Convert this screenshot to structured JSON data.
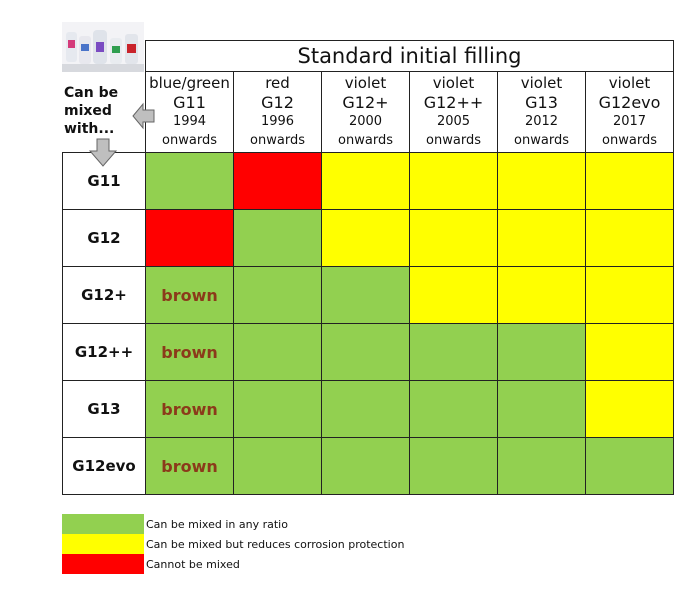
{
  "table": {
    "title": "Standard initial filling",
    "corner_label": "Can be mixed with...",
    "columns": [
      {
        "color": "blue/green",
        "code": "G11",
        "year": "1994",
        "suffix": "onwards"
      },
      {
        "color": "red",
        "code": "G12",
        "year": "1996",
        "suffix": "onwards"
      },
      {
        "color": "violet",
        "code": "G12+",
        "year": "2000",
        "suffix": "onwards"
      },
      {
        "color": "violet",
        "code": "G12++",
        "year": "2005",
        "suffix": "onwards"
      },
      {
        "color": "violet",
        "code": "G13",
        "year": "2012",
        "suffix": "onwards"
      },
      {
        "color": "violet",
        "code": "G12evo",
        "year": "2017",
        "suffix": "onwards"
      }
    ],
    "rows": [
      {
        "label": "G11",
        "cells": [
          {
            "status": "green",
            "text": ""
          },
          {
            "status": "red",
            "text": ""
          },
          {
            "status": "yellow",
            "text": ""
          },
          {
            "status": "yellow",
            "text": ""
          },
          {
            "status": "yellow",
            "text": ""
          },
          {
            "status": "yellow",
            "text": ""
          }
        ]
      },
      {
        "label": "G12",
        "cells": [
          {
            "status": "red",
            "text": ""
          },
          {
            "status": "green",
            "text": ""
          },
          {
            "status": "yellow",
            "text": ""
          },
          {
            "status": "yellow",
            "text": ""
          },
          {
            "status": "yellow",
            "text": ""
          },
          {
            "status": "yellow",
            "text": ""
          }
        ]
      },
      {
        "label": "G12+",
        "cells": [
          {
            "status": "green",
            "text": "brown"
          },
          {
            "status": "green",
            "text": ""
          },
          {
            "status": "green",
            "text": ""
          },
          {
            "status": "yellow",
            "text": ""
          },
          {
            "status": "yellow",
            "text": ""
          },
          {
            "status": "yellow",
            "text": ""
          }
        ]
      },
      {
        "label": "G12++",
        "cells": [
          {
            "status": "green",
            "text": "brown"
          },
          {
            "status": "green",
            "text": ""
          },
          {
            "status": "green",
            "text": ""
          },
          {
            "status": "green",
            "text": ""
          },
          {
            "status": "green",
            "text": ""
          },
          {
            "status": "yellow",
            "text": ""
          }
        ]
      },
      {
        "label": "G13",
        "cells": [
          {
            "status": "green",
            "text": "brown"
          },
          {
            "status": "green",
            "text": ""
          },
          {
            "status": "green",
            "text": ""
          },
          {
            "status": "green",
            "text": ""
          },
          {
            "status": "green",
            "text": ""
          },
          {
            "status": "yellow",
            "text": ""
          }
        ]
      },
      {
        "label": "G12evo",
        "cells": [
          {
            "status": "green",
            "text": "brown"
          },
          {
            "status": "green",
            "text": ""
          },
          {
            "status": "green",
            "text": ""
          },
          {
            "status": "green",
            "text": ""
          },
          {
            "status": "green",
            "text": ""
          },
          {
            "status": "green",
            "text": ""
          }
        ]
      }
    ]
  },
  "legend": [
    {
      "status": "green",
      "text": "Can be mixed in any ratio"
    },
    {
      "status": "yellow",
      "text": "Can be mixed but reduces corrosion protection"
    },
    {
      "status": "red",
      "text": "Cannot be mixed"
    }
  ],
  "colors": {
    "green": "#92d050",
    "yellow": "#ffff00",
    "red": "#ff0000",
    "brown_text": "#8b3a1a"
  },
  "icons": {
    "photo": "coolant-bottles-photo",
    "left_arrow": "arrow-left-icon",
    "down_arrow": "arrow-down-icon"
  }
}
